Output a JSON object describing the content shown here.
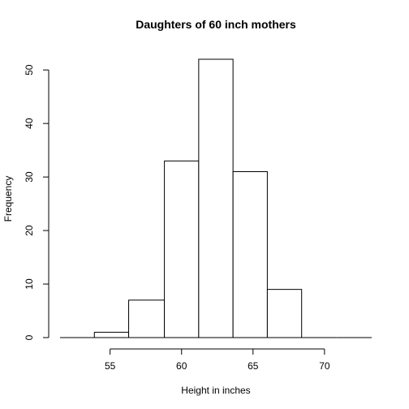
{
  "chart_data": {
    "type": "bar",
    "title": "Daughters of 60 inch mothers",
    "xlabel": "Height in inches",
    "ylabel": "Frequency",
    "bins": [
      {
        "from": 51.5,
        "to": 53.9,
        "count": 0
      },
      {
        "from": 53.9,
        "to": 56.3,
        "count": 1
      },
      {
        "from": 56.3,
        "to": 58.8,
        "count": 7
      },
      {
        "from": 58.8,
        "to": 61.2,
        "count": 33
      },
      {
        "from": 61.2,
        "to": 63.6,
        "count": 52
      },
      {
        "from": 63.6,
        "to": 66.0,
        "count": 31
      },
      {
        "from": 66.0,
        "to": 68.4,
        "count": 9
      },
      {
        "from": 68.4,
        "to": 70.9,
        "count": 0
      },
      {
        "from": 70.9,
        "to": 73.3,
        "count": 0
      }
    ],
    "xlim": [
      51.5,
      73.3
    ],
    "ylim": [
      0,
      52
    ],
    "x_ticks": [
      "55",
      "60",
      "65",
      "70"
    ],
    "y_ticks": [
      "0",
      "10",
      "20",
      "30",
      "40",
      "50"
    ],
    "grid": false,
    "legend": "none"
  }
}
